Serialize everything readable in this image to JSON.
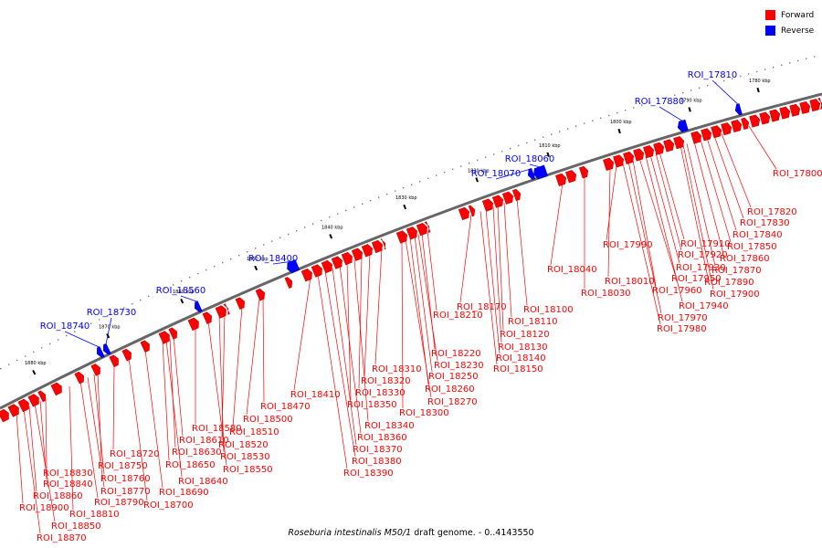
{
  "legend": {
    "forward_label": "Forward",
    "reverse_label": "Reverse",
    "forward_color": "#ff0000",
    "reverse_color": "#0000ff"
  },
  "caption": {
    "species": "Roseburia intestinalis M50/1",
    "rest": " draft genome. - 0..4143550"
  },
  "scale": {
    "ticks": [
      "1780 kbp",
      "1790 kbp",
      "1800 kbp",
      "1810 kbp",
      "1820 kbp",
      "1830 kbp",
      "1840 kbp",
      "1850 kbp",
      "1860 kbp",
      "1870 kbp",
      "1880 kbp"
    ]
  },
  "genes": [
    {
      "label": "ROI_17810",
      "strand": "reverse"
    },
    {
      "label": "ROI_17880",
      "strand": "reverse"
    },
    {
      "label": "ROI_18060",
      "strand": "reverse"
    },
    {
      "label": "ROI_18070",
      "strand": "reverse"
    },
    {
      "label": "ROI_18400",
      "strand": "reverse"
    },
    {
      "label": "ROI_18560",
      "strand": "reverse"
    },
    {
      "label": "ROI_18730",
      "strand": "reverse"
    },
    {
      "label": "ROI_18740",
      "strand": "reverse"
    },
    {
      "label": "ROI_17800",
      "strand": "forward"
    },
    {
      "label": "ROI_17820",
      "strand": "forward"
    },
    {
      "label": "ROI_17830",
      "strand": "forward"
    },
    {
      "label": "ROI_17840",
      "strand": "forward"
    },
    {
      "label": "ROI_17850",
      "strand": "forward"
    },
    {
      "label": "ROI_17860",
      "strand": "forward"
    },
    {
      "label": "ROI_17870",
      "strand": "forward"
    },
    {
      "label": "ROI_17890",
      "strand": "forward"
    },
    {
      "label": "ROI_17900",
      "strand": "forward"
    },
    {
      "label": "ROI_17910",
      "strand": "forward"
    },
    {
      "label": "ROI_17920",
      "strand": "forward"
    },
    {
      "label": "ROI_17930",
      "strand": "forward"
    },
    {
      "label": "ROI_17940",
      "strand": "forward"
    },
    {
      "label": "ROI_17950",
      "strand": "forward"
    },
    {
      "label": "ROI_17960",
      "strand": "forward"
    },
    {
      "label": "ROI_17970",
      "strand": "forward"
    },
    {
      "label": "ROI_17980",
      "strand": "forward"
    },
    {
      "label": "ROI_17990",
      "strand": "forward"
    },
    {
      "label": "ROI_18010",
      "strand": "forward"
    },
    {
      "label": "ROI_18030",
      "strand": "forward"
    },
    {
      "label": "ROI_18040",
      "strand": "forward"
    },
    {
      "label": "ROI_18100",
      "strand": "forward"
    },
    {
      "label": "ROI_18110",
      "strand": "forward"
    },
    {
      "label": "ROI_18120",
      "strand": "forward"
    },
    {
      "label": "ROI_18130",
      "strand": "forward"
    },
    {
      "label": "ROI_18140",
      "strand": "forward"
    },
    {
      "label": "ROI_18150",
      "strand": "forward"
    },
    {
      "label": "ROI_18170",
      "strand": "forward"
    },
    {
      "label": "ROI_18210",
      "strand": "forward"
    },
    {
      "label": "ROI_18220",
      "strand": "forward"
    },
    {
      "label": "ROI_18230",
      "strand": "forward"
    },
    {
      "label": "ROI_18250",
      "strand": "forward"
    },
    {
      "label": "ROI_18260",
      "strand": "forward"
    },
    {
      "label": "ROI_18270",
      "strand": "forward"
    },
    {
      "label": "ROI_18300",
      "strand": "forward"
    },
    {
      "label": "ROI_18310",
      "strand": "forward"
    },
    {
      "label": "ROI_18320",
      "strand": "forward"
    },
    {
      "label": "ROI_18330",
      "strand": "forward"
    },
    {
      "label": "ROI_18340",
      "strand": "forward"
    },
    {
      "label": "ROI_18350",
      "strand": "forward"
    },
    {
      "label": "ROI_18360",
      "strand": "forward"
    },
    {
      "label": "ROI_18370",
      "strand": "forward"
    },
    {
      "label": "ROI_18380",
      "strand": "forward"
    },
    {
      "label": "ROI_18390",
      "strand": "forward"
    },
    {
      "label": "ROI_18410",
      "strand": "forward"
    },
    {
      "label": "ROI_18470",
      "strand": "forward"
    },
    {
      "label": "ROI_18500",
      "strand": "forward"
    },
    {
      "label": "ROI_18510",
      "strand": "forward"
    },
    {
      "label": "ROI_18520",
      "strand": "forward"
    },
    {
      "label": "ROI_18530",
      "strand": "forward"
    },
    {
      "label": "ROI_18550",
      "strand": "forward"
    },
    {
      "label": "ROI_18580",
      "strand": "forward"
    },
    {
      "label": "ROI_18610",
      "strand": "forward"
    },
    {
      "label": "ROI_18630",
      "strand": "forward"
    },
    {
      "label": "ROI_18640",
      "strand": "forward"
    },
    {
      "label": "ROI_18650",
      "strand": "forward"
    },
    {
      "label": "ROI_18690",
      "strand": "forward"
    },
    {
      "label": "ROI_18700",
      "strand": "forward"
    },
    {
      "label": "ROI_18720",
      "strand": "forward"
    },
    {
      "label": "ROI_18750",
      "strand": "forward"
    },
    {
      "label": "ROI_18760",
      "strand": "forward"
    },
    {
      "label": "ROI_18770",
      "strand": "forward"
    },
    {
      "label": "ROI_18790",
      "strand": "forward"
    },
    {
      "label": "ROI_18810",
      "strand": "forward"
    },
    {
      "label": "ROI_18830",
      "strand": "forward"
    },
    {
      "label": "ROI_18840",
      "strand": "forward"
    },
    {
      "label": "ROI_18850",
      "strand": "forward"
    },
    {
      "label": "ROI_18860",
      "strand": "forward"
    },
    {
      "label": "ROI_18870",
      "strand": "forward"
    },
    {
      "label": "ROI_18900",
      "strand": "forward"
    }
  ]
}
